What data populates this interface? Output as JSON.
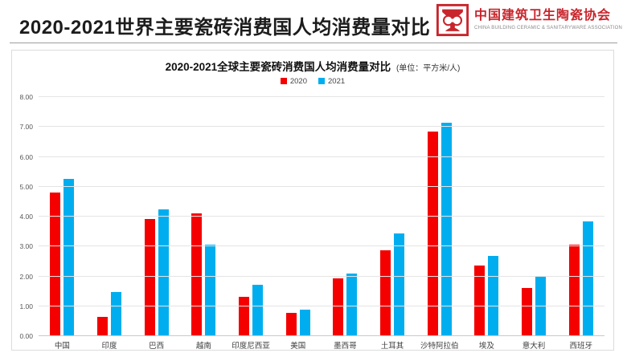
{
  "header": {
    "title": "2020-2021世界主要瓷砖消费国人均消费量对比",
    "logo": {
      "name_cn": "中国建筑卫生陶瓷协会",
      "name_en": "CHINA BUILDING CERAMIC & SANITARYWARE ASSOCIATION",
      "color": "#c9252c"
    }
  },
  "chart_data": {
    "type": "bar",
    "title": "2020-2021全球主要瓷砖消费国人均消费量对比",
    "unit_note": "(单位：平方米/人)",
    "categories": [
      "中国",
      "印度",
      "巴西",
      "越南",
      "印度尼西亚",
      "美国",
      "墨西哥",
      "土耳其",
      "沙特阿拉伯",
      "埃及",
      "意大利",
      "西班牙"
    ],
    "series": [
      {
        "name": "2020",
        "color": "#f40000",
        "values": [
          4.8,
          0.65,
          3.91,
          4.12,
          1.31,
          0.79,
          1.92,
          2.88,
          6.85,
          2.37,
          1.62,
          3.05
        ]
      },
      {
        "name": "2021",
        "color": "#00aeef",
        "values": [
          5.27,
          1.47,
          4.25,
          3.05,
          1.73,
          0.88,
          2.1,
          3.44,
          7.14,
          2.68,
          2.02,
          3.85
        ]
      }
    ],
    "ylim": [
      0,
      8
    ],
    "ytick_step": 1,
    "ytick_decimals": 2,
    "grid": true,
    "legend_position": "top"
  }
}
